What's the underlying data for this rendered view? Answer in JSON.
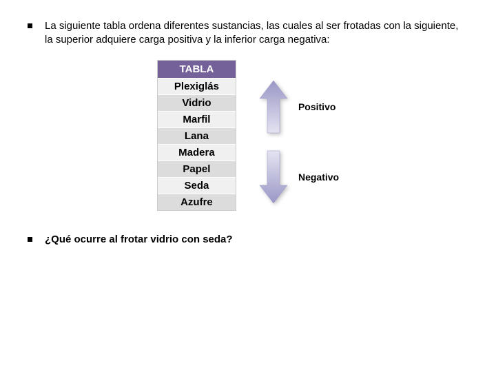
{
  "intro": {
    "text": "La siguiente tabla ordena diferentes sustancias, las cuales al ser frotadas con la siguiente, la superior adquiere carga positiva y la inferior carga negativa:"
  },
  "table": {
    "header": "TABLA",
    "header_bg": "#746199",
    "row_bg_light": "#f0f0f0",
    "row_bg_dark": "#dcdcdc",
    "rows": [
      "Plexiglás",
      "Vidrio",
      "Marfil",
      "Lana",
      "Madera",
      "Papel",
      "Seda",
      "Azufre"
    ]
  },
  "arrows": {
    "positive_label": "Positivo",
    "negative_label": "Negativo",
    "gradient_light": "#e4e3f1",
    "gradient_dark": "#9a97c6"
  },
  "question": {
    "text": "¿Qué ocurre al frotar vidrio con seda?"
  }
}
